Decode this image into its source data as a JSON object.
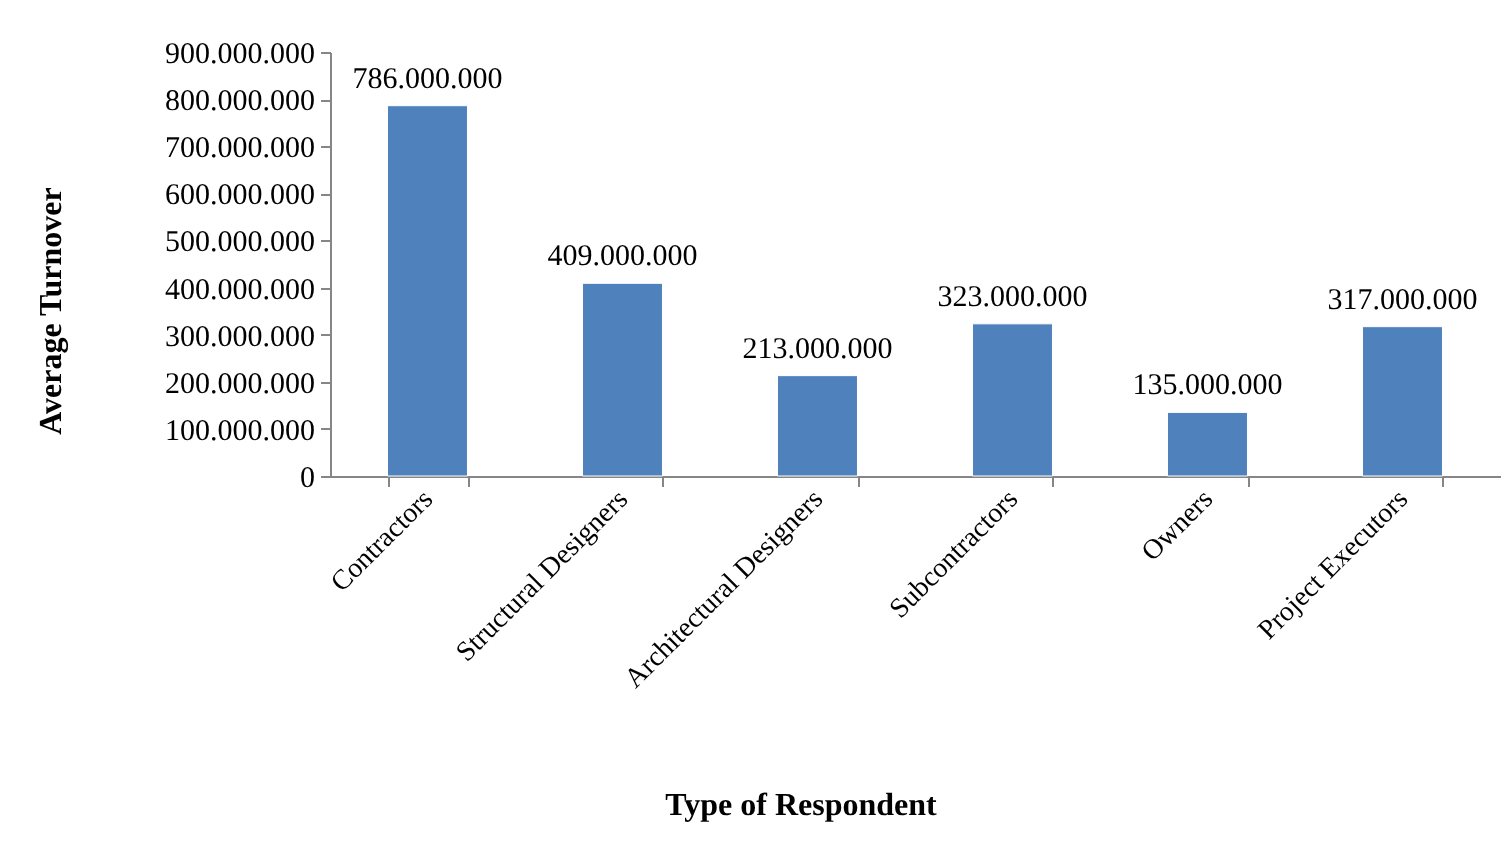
{
  "chart_data": {
    "type": "bar",
    "xlabel": "Type of Respondent",
    "ylabel": "Average Turnover",
    "categories": [
      "Contractors",
      "Structural Designers",
      "Architectural Designers",
      "Subcontractors",
      "Owners",
      "Project Executors"
    ],
    "values": [
      786000000,
      409000000,
      213000000,
      323000000,
      135000000,
      317000000
    ],
    "value_labels": [
      "786.000.000",
      "409.000.000",
      "213.000.000",
      "323.000.000",
      "135.000.000",
      "317.000.000"
    ],
    "color": "#4f81bd",
    "ylim": [
      0,
      900000000
    ],
    "yticks": [
      0,
      {
        "value": 100000000,
        "label": "100.000.000"
      },
      {
        "value": 200000000,
        "label": "200.000.000"
      },
      {
        "value": 300000000,
        "label": "300.000.000"
      },
      {
        "value": 400000000,
        "label": "400.000.000"
      },
      {
        "value": 500000000,
        "label": "500.000.000"
      },
      {
        "value": 600000000,
        "label": "600.000.000"
      },
      {
        "value": 700000000,
        "label": "700.000.000"
      },
      {
        "value": 800000000,
        "label": "800.000.000"
      },
      {
        "value": 900000000,
        "label": "900.000.000"
      }
    ],
    "grid": false
  }
}
